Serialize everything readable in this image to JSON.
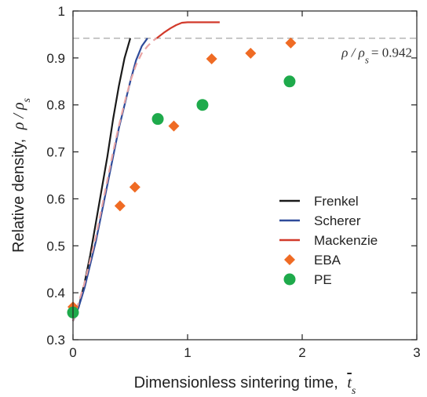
{
  "chart_data": {
    "type": "line",
    "xlabel": "Dimensionless sintering time,",
    "xlabel_symbol": "t",
    "xlabel_subscript": "s",
    "ylabel": "Relative density,",
    "ylabel_symbol": "ρ / ρ",
    "ylabel_subscript": "s",
    "xlim": [
      0,
      3
    ],
    "ylim": [
      0.3,
      1.0
    ],
    "x_ticks": [
      0,
      1,
      2,
      3
    ],
    "y_ticks": [
      0.3,
      0.4,
      0.5,
      0.6,
      0.7,
      0.8,
      0.9,
      1.0
    ],
    "x_tick_labels": [
      "0",
      "1",
      "2",
      "3"
    ],
    "y_tick_labels": [
      "0.3",
      "0.4",
      "0.5",
      "0.6",
      "0.7",
      "0.8",
      "0.9",
      "1"
    ],
    "grid": false,
    "legend_position": "right",
    "reference_line": {
      "y": 0.942,
      "color": "#a8a8a8",
      "style": "dashed",
      "label_prefix": "ρ / ρ",
      "label_subscript": "s",
      "label_value": "= 0.942"
    },
    "series": [
      {
        "name": "Frenkel",
        "kind": "line",
        "color": "#1a1a1a",
        "x": [
          0,
          0.05,
          0.1,
          0.15,
          0.2,
          0.25,
          0.3,
          0.35,
          0.4,
          0.45,
          0.5
        ],
        "y": [
          0.34,
          0.37,
          0.42,
          0.48,
          0.55,
          0.62,
          0.69,
          0.77,
          0.84,
          0.9,
          0.942
        ]
      },
      {
        "name": "Scherer",
        "kind": "line",
        "color": "#2f4b9a",
        "x": [
          0,
          0.05,
          0.1,
          0.15,
          0.2,
          0.25,
          0.3,
          0.35,
          0.4,
          0.45,
          0.5,
          0.55,
          0.6,
          0.65
        ],
        "y": [
          0.34,
          0.37,
          0.41,
          0.46,
          0.51,
          0.57,
          0.63,
          0.69,
          0.75,
          0.8,
          0.85,
          0.895,
          0.925,
          0.942
        ]
      },
      {
        "name": "Mackenzie",
        "kind": "line",
        "color": "#d23a2b",
        "x": [
          0.73,
          0.8,
          0.85,
          0.9,
          0.95,
          1.0,
          1.1,
          1.2,
          1.28
        ],
        "y": [
          0.942,
          0.955,
          0.963,
          0.97,
          0.975,
          0.976,
          0.976,
          0.976,
          0.976
        ]
      },
      {
        "name": "",
        "kind": "dashed-line",
        "color": "#e8a4a4",
        "x": [
          0,
          0.05,
          0.1,
          0.15,
          0.2,
          0.25,
          0.3,
          0.35,
          0.4,
          0.45,
          0.5,
          0.55,
          0.6,
          0.65,
          0.7,
          0.73
        ],
        "y": [
          0.34,
          0.38,
          0.42,
          0.47,
          0.52,
          0.58,
          0.64,
          0.7,
          0.755,
          0.805,
          0.85,
          0.885,
          0.91,
          0.925,
          0.937,
          0.942
        ]
      },
      {
        "name": "EBA",
        "kind": "marker",
        "marker": "diamond",
        "color": "#ef6b24",
        "x": [
          0,
          0.41,
          0.54,
          0.88,
          1.21,
          1.55,
          1.9
        ],
        "y": [
          0.37,
          0.585,
          0.625,
          0.755,
          0.898,
          0.91,
          0.932
        ]
      },
      {
        "name": "PE",
        "kind": "marker",
        "marker": "circle",
        "color": "#1eaa4b",
        "x": [
          0,
          0.74,
          1.13,
          1.89
        ],
        "y": [
          0.358,
          0.77,
          0.8,
          0.85
        ]
      }
    ]
  }
}
